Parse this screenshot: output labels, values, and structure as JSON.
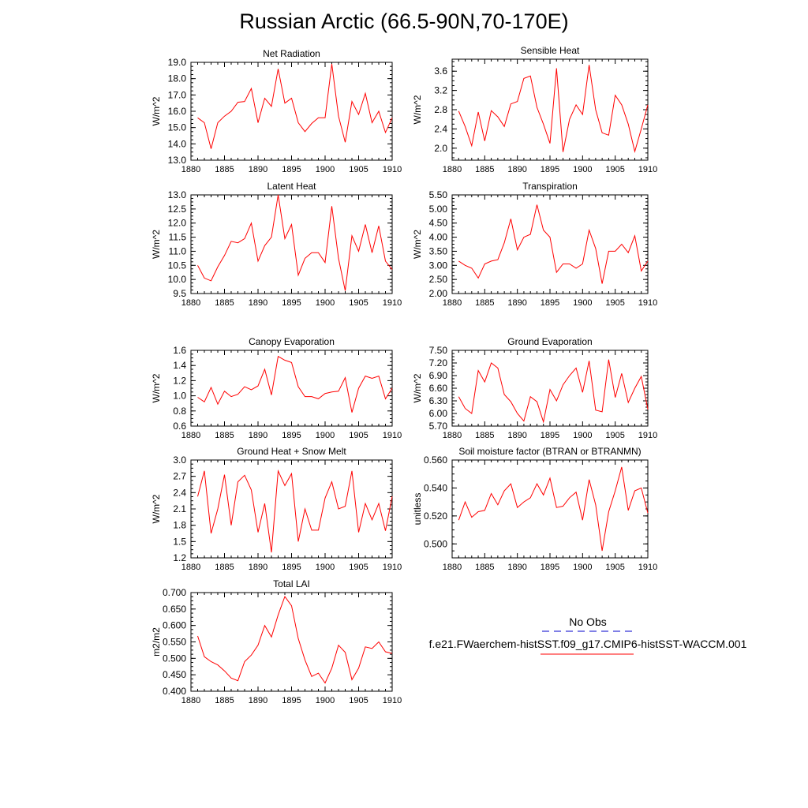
{
  "title": "Russian Arctic (66.5-90N,70-170E)",
  "legend": {
    "obs_label": "No Obs",
    "model_label": "f.e21.FWaerchem-histSST.f09_g17.CMIP6-histSST-WACCM.001",
    "model_color": "#ff0000",
    "obs_color": "#0000cc"
  },
  "chart_data": [
    {
      "type": "line",
      "title": "Net Radiation",
      "ylabel": "W/m^2",
      "xlim": [
        1880,
        1910
      ],
      "x_ticks": [
        1880,
        1885,
        1890,
        1895,
        1900,
        1905,
        1910
      ],
      "ylim": [
        13.0,
        19.0
      ],
      "y_ticks": [
        "13.0",
        "14.0",
        "15.0",
        "16.0",
        "17.0",
        "18.0",
        "19.0"
      ],
      "x": [
        1881,
        1882,
        1883,
        1884,
        1885,
        1886,
        1887,
        1888,
        1889,
        1890,
        1891,
        1892,
        1893,
        1894,
        1895,
        1896,
        1897,
        1898,
        1899,
        1900,
        1901,
        1902,
        1903,
        1904,
        1905,
        1906,
        1907,
        1908,
        1909,
        1910
      ],
      "values": [
        15.6,
        15.3,
        13.7,
        15.3,
        15.7,
        16.0,
        16.55,
        16.6,
        17.4,
        15.3,
        16.8,
        16.3,
        18.6,
        16.5,
        16.8,
        15.3,
        14.75,
        15.25,
        15.6,
        15.6,
        18.9,
        15.7,
        14.1,
        16.6,
        15.8,
        17.1,
        15.3,
        16.0,
        14.7,
        15.6
      ],
      "series_color": "#ff0000"
    },
    {
      "type": "line",
      "title": "Sensible Heat",
      "ylabel": "W/m^2",
      "xlim": [
        1880,
        1910
      ],
      "x_ticks": [
        1880,
        1885,
        1890,
        1895,
        1900,
        1905,
        1910
      ],
      "ylim": [
        1.75,
        3.85
      ],
      "y_ticks": [
        "2.0",
        "2.4",
        "2.8",
        "3.2",
        "3.6"
      ],
      "x": [
        1881,
        1882,
        1883,
        1884,
        1885,
        1886,
        1887,
        1888,
        1889,
        1890,
        1891,
        1892,
        1893,
        1894,
        1895,
        1896,
        1897,
        1898,
        1899,
        1900,
        1901,
        1902,
        1903,
        1904,
        1905,
        1906,
        1907,
        1908,
        1909,
        1910
      ],
      "values": [
        2.77,
        2.45,
        2.05,
        2.75,
        2.15,
        2.78,
        2.65,
        2.45,
        2.92,
        2.97,
        3.45,
        3.5,
        2.85,
        2.5,
        2.1,
        3.66,
        1.92,
        2.6,
        2.9,
        2.7,
        3.73,
        2.8,
        2.32,
        2.27,
        3.1,
        2.9,
        2.5,
        1.93,
        2.4,
        2.9
      ],
      "series_color": "#ff0000"
    },
    {
      "type": "line",
      "title": "Latent Heat",
      "ylabel": "W/m^2",
      "xlim": [
        1880,
        1910
      ],
      "x_ticks": [
        1880,
        1885,
        1890,
        1895,
        1900,
        1905,
        1910
      ],
      "ylim": [
        9.5,
        13.0
      ],
      "y_ticks": [
        "9.5",
        "10.0",
        "10.5",
        "11.0",
        "11.5",
        "12.0",
        "12.5",
        "13.0"
      ],
      "x": [
        1881,
        1882,
        1883,
        1884,
        1885,
        1886,
        1887,
        1888,
        1889,
        1890,
        1891,
        1892,
        1893,
        1894,
        1895,
        1896,
        1897,
        1898,
        1899,
        1900,
        1901,
        1902,
        1903,
        1904,
        1905,
        1906,
        1907,
        1908,
        1909,
        1910
      ],
      "values": [
        10.5,
        10.05,
        9.95,
        10.45,
        10.85,
        11.35,
        11.3,
        11.45,
        12.0,
        10.65,
        11.2,
        11.5,
        13.0,
        11.45,
        11.95,
        10.15,
        10.75,
        10.95,
        10.95,
        10.6,
        12.6,
        10.75,
        9.6,
        11.55,
        11.0,
        11.95,
        10.95,
        11.9,
        10.65,
        10.35
      ],
      "series_color": "#ff0000"
    },
    {
      "type": "line",
      "title": "Transpiration",
      "ylabel": "W/m^2",
      "xlim": [
        1880,
        1910
      ],
      "x_ticks": [
        1880,
        1885,
        1890,
        1895,
        1900,
        1905,
        1910
      ],
      "ylim": [
        2.0,
        5.5
      ],
      "y_ticks": [
        "2.00",
        "2.50",
        "3.00",
        "3.50",
        "4.00",
        "4.50",
        "5.00",
        "5.50"
      ],
      "x": [
        1881,
        1882,
        1883,
        1884,
        1885,
        1886,
        1887,
        1888,
        1889,
        1890,
        1891,
        1892,
        1893,
        1894,
        1895,
        1896,
        1897,
        1898,
        1899,
        1900,
        1901,
        1902,
        1903,
        1904,
        1905,
        1906,
        1907,
        1908,
        1909,
        1910
      ],
      "values": [
        3.15,
        3.0,
        2.9,
        2.55,
        3.05,
        3.15,
        3.2,
        3.8,
        4.65,
        3.55,
        4.0,
        4.1,
        5.15,
        4.25,
        4.0,
        2.75,
        3.05,
        3.05,
        2.9,
        3.05,
        4.25,
        3.6,
        2.35,
        3.5,
        3.5,
        3.75,
        3.45,
        4.05,
        2.8,
        3.15
      ],
      "series_color": "#ff0000"
    },
    {
      "type": "line",
      "title": "Canopy Evaporation",
      "ylabel": "W/m^2",
      "xlim": [
        1880,
        1910
      ],
      "x_ticks": [
        1880,
        1885,
        1890,
        1895,
        1900,
        1905,
        1910
      ],
      "ylim": [
        0.6,
        1.6
      ],
      "y_ticks": [
        "0.6",
        "0.8",
        "1.0",
        "1.2",
        "1.4",
        "1.6"
      ],
      "x": [
        1881,
        1882,
        1883,
        1884,
        1885,
        1886,
        1887,
        1888,
        1889,
        1890,
        1891,
        1892,
        1893,
        1894,
        1895,
        1896,
        1897,
        1898,
        1899,
        1900,
        1901,
        1902,
        1903,
        1904,
        1905,
        1906,
        1907,
        1908,
        1909,
        1910
      ],
      "values": [
        0.98,
        0.92,
        1.11,
        0.89,
        1.06,
        0.99,
        1.02,
        1.12,
        1.08,
        1.13,
        1.35,
        1.01,
        1.52,
        1.47,
        1.44,
        1.12,
        0.99,
        0.99,
        0.96,
        1.03,
        1.05,
        1.06,
        1.24,
        0.78,
        1.1,
        1.26,
        1.23,
        1.26,
        0.96,
        1.1
      ],
      "series_color": "#ff0000"
    },
    {
      "type": "line",
      "title": "Ground Evaporation",
      "ylabel": "W/m^2",
      "xlim": [
        1880,
        1910
      ],
      "x_ticks": [
        1880,
        1885,
        1890,
        1895,
        1900,
        1905,
        1910
      ],
      "ylim": [
        5.7,
        7.5
      ],
      "y_ticks": [
        "5.70",
        "6.00",
        "6.30",
        "6.60",
        "6.90",
        "7.20",
        "7.50"
      ],
      "x": [
        1881,
        1882,
        1883,
        1884,
        1885,
        1886,
        1887,
        1888,
        1889,
        1890,
        1891,
        1892,
        1893,
        1894,
        1895,
        1896,
        1897,
        1898,
        1899,
        1900,
        1901,
        1902,
        1903,
        1904,
        1905,
        1906,
        1907,
        1908,
        1909,
        1910
      ],
      "values": [
        6.4,
        6.12,
        6.0,
        7.02,
        6.75,
        7.2,
        7.08,
        6.45,
        6.28,
        6.0,
        5.82,
        6.4,
        6.28,
        5.8,
        6.57,
        6.3,
        6.68,
        6.9,
        7.08,
        6.5,
        7.25,
        6.08,
        6.04,
        7.28,
        6.38,
        6.95,
        6.26,
        6.6,
        6.88,
        6.1
      ],
      "series_color": "#ff0000"
    },
    {
      "type": "line",
      "title": "Ground Heat + Snow Melt",
      "ylabel": "W/m^2",
      "xlim": [
        1880,
        1910
      ],
      "x_ticks": [
        1880,
        1885,
        1890,
        1895,
        1900,
        1905,
        1910
      ],
      "ylim": [
        1.2,
        3.0
      ],
      "y_ticks": [
        "1.2",
        "1.5",
        "1.8",
        "2.1",
        "2.4",
        "2.7",
        "3.0"
      ],
      "x": [
        1881,
        1882,
        1883,
        1884,
        1885,
        1886,
        1887,
        1888,
        1889,
        1890,
        1891,
        1892,
        1893,
        1894,
        1895,
        1896,
        1897,
        1898,
        1899,
        1900,
        1901,
        1902,
        1903,
        1904,
        1905,
        1906,
        1907,
        1908,
        1909,
        1910
      ],
      "values": [
        2.33,
        2.8,
        1.65,
        2.1,
        2.73,
        1.8,
        2.6,
        2.72,
        2.45,
        1.67,
        2.2,
        1.3,
        2.8,
        2.53,
        2.75,
        1.5,
        2.1,
        1.71,
        1.71,
        2.3,
        2.6,
        2.1,
        2.15,
        2.8,
        1.67,
        2.2,
        1.9,
        2.2,
        1.7,
        2.33
      ],
      "series_color": "#ff0000"
    },
    {
      "type": "line",
      "title": "Soil moisture factor (BTRAN or BTRANMN)",
      "ylabel": "unitless",
      "xlim": [
        1880,
        1910
      ],
      "x_ticks": [
        1880,
        1885,
        1890,
        1895,
        1900,
        1905,
        1910
      ],
      "ylim": [
        0.49,
        0.56
      ],
      "y_ticks": [
        "0.500",
        "0.520",
        "0.540",
        "0.560"
      ],
      "x": [
        1881,
        1882,
        1883,
        1884,
        1885,
        1886,
        1887,
        1888,
        1889,
        1890,
        1891,
        1892,
        1893,
        1894,
        1895,
        1896,
        1897,
        1898,
        1899,
        1900,
        1901,
        1902,
        1903,
        1904,
        1905,
        1906,
        1907,
        1908,
        1909,
        1910
      ],
      "values": [
        0.517,
        0.53,
        0.519,
        0.523,
        0.524,
        0.536,
        0.528,
        0.538,
        0.543,
        0.526,
        0.53,
        0.533,
        0.543,
        0.535,
        0.547,
        0.526,
        0.527,
        0.533,
        0.537,
        0.517,
        0.546,
        0.528,
        0.495,
        0.523,
        0.538,
        0.555,
        0.524,
        0.538,
        0.54,
        0.522
      ],
      "series_color": "#ff0000"
    },
    {
      "type": "line",
      "title": "Total LAI",
      "ylabel": "m2/m2",
      "xlim": [
        1880,
        1910
      ],
      "x_ticks": [
        1880,
        1885,
        1890,
        1895,
        1900,
        1905,
        1910
      ],
      "ylim": [
        0.4,
        0.7
      ],
      "y_ticks": [
        "0.400",
        "0.450",
        "0.500",
        "0.550",
        "0.600",
        "0.650",
        "0.700"
      ],
      "x": [
        1881,
        1882,
        1883,
        1884,
        1885,
        1886,
        1887,
        1888,
        1889,
        1890,
        1891,
        1892,
        1893,
        1894,
        1895,
        1896,
        1897,
        1898,
        1899,
        1900,
        1901,
        1902,
        1903,
        1904,
        1905,
        1906,
        1907,
        1908,
        1909,
        1910
      ],
      "values": [
        0.568,
        0.505,
        0.49,
        0.48,
        0.462,
        0.44,
        0.432,
        0.49,
        0.51,
        0.54,
        0.6,
        0.565,
        0.632,
        0.688,
        0.66,
        0.56,
        0.495,
        0.445,
        0.455,
        0.425,
        0.47,
        0.54,
        0.518,
        0.435,
        0.47,
        0.535,
        0.53,
        0.55,
        0.52,
        0.515
      ],
      "series_color": "#ff0000"
    }
  ]
}
